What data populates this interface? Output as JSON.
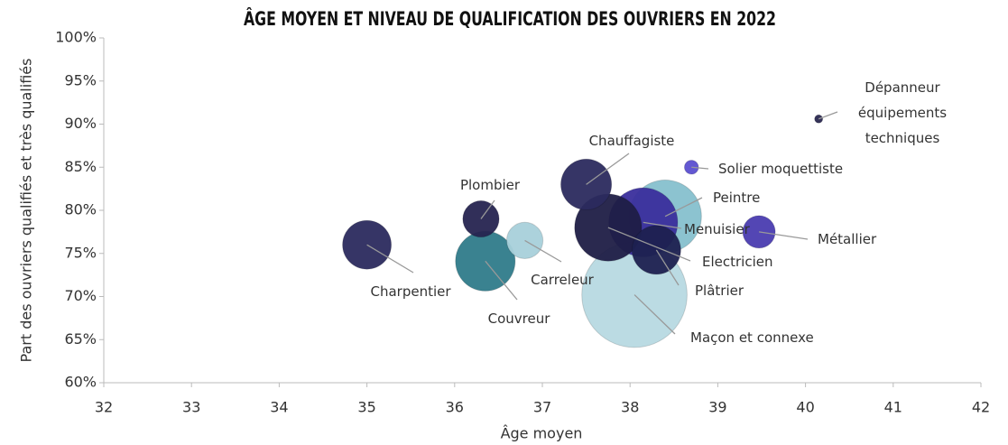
{
  "chart_data": {
    "type": "bubble",
    "title": "ÂGE MOYEN ET NIVEAU DE QUALIFICATION DES OUVRIERS EN 2022",
    "x_label": "Âge moyen",
    "y_label": "Part des ouvriers qualifiés et très qualifiés",
    "labels": [
      "Maçon et connexe",
      "Peintre",
      "Menuisier",
      "Electricien",
      "Plâtrier",
      "Couvreur",
      "Charpentier",
      "Chauffagiste",
      "Carreleur",
      "Plombier",
      "Métallier",
      "Solier moquettiste",
      "Dépanneur équipements techniques"
    ],
    "x": [
      38.05,
      38.4,
      38.15,
      37.75,
      38.3,
      36.35,
      35.0,
      37.5,
      36.8,
      36.3,
      39.47,
      38.7,
      40.15
    ],
    "values": [
      70.2,
      79.3,
      78.6,
      78.0,
      75.4,
      74.1,
      76.0,
      83.0,
      76.5,
      79.0,
      77.5,
      85.0,
      90.6
    ],
    "sizes": [
      168,
      80,
      72,
      68,
      36,
      54,
      36,
      39,
      20,
      20,
      16,
      3,
      1
    ],
    "colors": [
      "#b7d9e2",
      "#86c0ce",
      "#3a2e9c",
      "#1f1d46",
      "#1d2150",
      "#2f7b8a",
      "#2b2a5e",
      "#2b2a5e",
      "#a8d0da",
      "#262450",
      "#4a3cb0",
      "#5b4fd0",
      "#2a2850"
    ],
    "xlim": [
      32,
      42
    ],
    "xticks": [
      32,
      33,
      34,
      35,
      36,
      37,
      38,
      39,
      40,
      41,
      42
    ],
    "ylim": [
      60,
      100
    ],
    "yticks": [
      {
        "value": 60,
        "label": "60%"
      },
      {
        "value": 65,
        "label": "65%"
      },
      {
        "value": 70,
        "label": "70%"
      },
      {
        "value": 75,
        "label": "75%"
      },
      {
        "value": 80,
        "label": "80%"
      },
      {
        "value": 85,
        "label": "85%"
      },
      {
        "value": 90,
        "label": "90%"
      },
      {
        "value": 95,
        "label": "95%"
      },
      {
        "value": 100,
        "label": "100%"
      }
    ]
  }
}
